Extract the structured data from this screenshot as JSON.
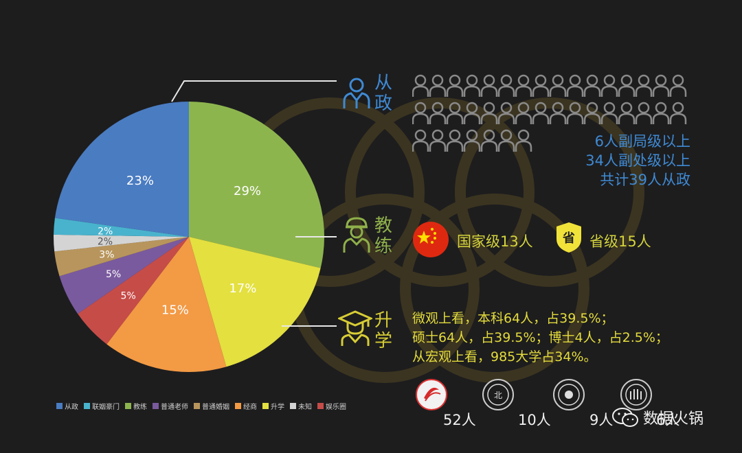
{
  "chart_data": {
    "type": "pie",
    "categories": [
      "从政",
      "联姻豪门",
      "教练",
      "普通老师",
      "普通婚姻",
      "经商",
      "升学",
      "未知",
      "娱乐圈"
    ],
    "values": [
      23,
      2,
      29,
      5,
      3,
      15,
      17,
      2,
      5
    ],
    "labels": [
      "23%",
      "2%",
      "29%",
      "5%",
      "3%",
      "15%",
      "17%",
      "2%",
      "5%"
    ],
    "colors": [
      "#4a7cc1",
      "#49b3cd",
      "#8db54e",
      "#7a5a9e",
      "#b8955c",
      "#f39a45",
      "#e3e040",
      "#d4d4d4",
      "#c64c48"
    ],
    "legend_position": "bottom-left"
  },
  "theme": {
    "ring_color": "#3b3420",
    "person_icon_color": "#8a8a8a",
    "flag_red": "#de2910",
    "flag_star": "#ffde00",
    "shield_yellow": "#f1e23a"
  },
  "sections": {
    "politics": {
      "label": "从政",
      "icon": "officer-icon",
      "person_count_icons": 39,
      "stats": [
        "6人副局级以上",
        "34人副处级以上",
        "共计39人从政"
      ]
    },
    "coach": {
      "label": "教练",
      "icon": "coach-icon",
      "national": "国家级13人",
      "provincial": "省级15人",
      "shield_text": "省"
    },
    "education": {
      "label": "升学",
      "icon": "graduate-icon",
      "lines": [
        "微观上看，本科64人，占39.5%；",
        "硕士64人，占39.5%；博士4人，占2.5%；",
        "从宏观上看，985大学占34%。"
      ],
      "universities": [
        {
          "logo": "bsu-logo",
          "count": "52人"
        },
        {
          "logo": "pku-logo",
          "count": "10人"
        },
        {
          "logo": "tsinghua-logo",
          "count": "9人"
        },
        {
          "logo": "university-logo",
          "count": "6人"
        }
      ]
    }
  },
  "watermark": {
    "text": "数据火锅",
    "icon": "wechat-icon"
  }
}
